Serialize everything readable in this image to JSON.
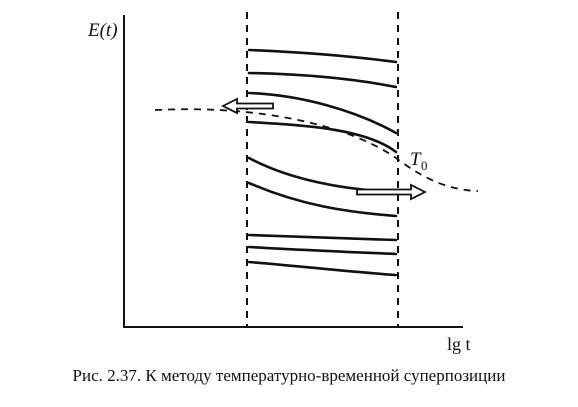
{
  "diagram": {
    "y_axis_label": "E(t)",
    "x_axis_label": "lg t",
    "curve_label": "T",
    "curve_label_subscript": "0"
  },
  "caption": "Рис. 2.37. К методу температурно-временной суперпозиции",
  "colors": {
    "ink": "#111111",
    "background": "#ffffff"
  }
}
